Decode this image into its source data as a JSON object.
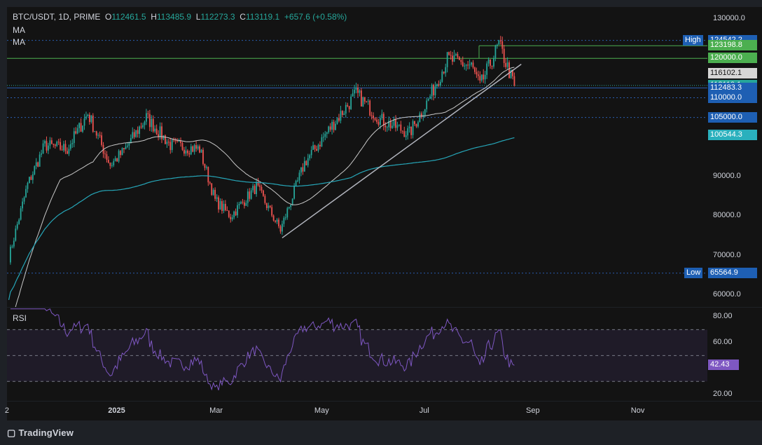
{
  "header": {
    "symbol": "BTC/USDT, 1D, PRIME",
    "o_label": "O",
    "o_value": "112461.5",
    "h_label": "H",
    "h_value": "113485.9",
    "l_label": "L",
    "l_value": "112273.3",
    "c_label": "C",
    "c_value": "113119.1",
    "change": "+657.6 (+0.58%)",
    "ma1": "MA",
    "ma2": "MA"
  },
  "rsi_label": "RSI",
  "brand": "TradingView",
  "colors": {
    "up": "#26a69a",
    "down": "#ef5350",
    "ma_fast": "#c8c8c8",
    "ma_slow": "#26a6b8",
    "rsi": "#7e57c2",
    "trendline": "#b2b5be"
  },
  "price_ticks": [
    "130000.0",
    "90000.0",
    "80000.0",
    "70000.0",
    "60000.0"
  ],
  "rsi_ticks": [
    "80.00",
    "60.00",
    "20.00"
  ],
  "time_ticks": [
    {
      "label": "2",
      "bold": false
    },
    {
      "label": "2025",
      "bold": true
    },
    {
      "label": "Mar",
      "bold": false
    },
    {
      "label": "May",
      "bold": false
    },
    {
      "label": "Jul",
      "bold": false
    },
    {
      "label": "Sep",
      "bold": false
    },
    {
      "label": "Nov",
      "bold": false
    }
  ],
  "price_tags": [
    {
      "label": "High",
      "value": "124542.2",
      "bg": "#1e5fb3"
    },
    {
      "label": "",
      "value": "123198.8",
      "bg": "#4caf50"
    },
    {
      "label": "",
      "value": "120000.0",
      "bg": "#4caf50"
    },
    {
      "label": "",
      "value": "116102.1",
      "bg": "#d6d6d6"
    },
    {
      "label": "",
      "value": "113119.1",
      "bg": "#26a69a"
    },
    {
      "label": "",
      "value": "112483.3",
      "bg": "#1e5fb3"
    },
    {
      "label": "",
      "value": "110000.0",
      "bg": "#1e5fb3"
    },
    {
      "label": "",
      "value": "105000.0",
      "bg": "#1e5fb3"
    },
    {
      "label": "",
      "value": "100544.3",
      "bg": "#2ab0bd"
    },
    {
      "label": "Low",
      "value": "65564.9",
      "bg": "#1e5fb3"
    }
  ],
  "rsi_value_tag": "42.43",
  "chart_data": {
    "type": "candlestick",
    "title": "BTC/USDT, 1D, PRIME",
    "y_range": [
      57000,
      133000
    ],
    "rsi_range": [
      15,
      87
    ],
    "rsi_levels": [
      70,
      50,
      30
    ],
    "horizontal_levels": [
      124542.2,
      123198.8,
      120000.0,
      112483.3,
      110000.0,
      105000.0,
      65564.9
    ],
    "close_series": [
      {
        "date": "2024-11-01",
        "close": 69500
      },
      {
        "date": "2024-11-12",
        "close": 88000
      },
      {
        "date": "2024-11-22",
        "close": 98000
      },
      {
        "date": "2024-12-05",
        "close": 97000
      },
      {
        "date": "2024-12-17",
        "close": 106000
      },
      {
        "date": "2024-12-30",
        "close": 93000
      },
      {
        "date": "2025-01-07",
        "close": 96500
      },
      {
        "date": "2025-01-20",
        "close": 105000
      },
      {
        "date": "2025-02-03",
        "close": 98000
      },
      {
        "date": "2025-02-20",
        "close": 97000
      },
      {
        "date": "2025-03-01",
        "close": 84000
      },
      {
        "date": "2025-03-10",
        "close": 80000
      },
      {
        "date": "2025-03-25",
        "close": 87500
      },
      {
        "date": "2025-04-08",
        "close": 76500
      },
      {
        "date": "2025-04-22",
        "close": 93500
      },
      {
        "date": "2025-05-08",
        "close": 103000
      },
      {
        "date": "2025-05-22",
        "close": 111000
      },
      {
        "date": "2025-06-05",
        "close": 104500
      },
      {
        "date": "2025-06-22",
        "close": 101000
      },
      {
        "date": "2025-07-03",
        "close": 109500
      },
      {
        "date": "2025-07-14",
        "close": 119800
      },
      {
        "date": "2025-07-28",
        "close": 118000
      },
      {
        "date": "2025-08-02",
        "close": 113000
      },
      {
        "date": "2025-08-13",
        "close": 123500
      },
      {
        "date": "2025-08-22",
        "close": 113119.1
      }
    ],
    "ma_fast_last": 116102.1,
    "ma_slow_last": 100544.3,
    "rsi_last": 42.43,
    "x_ticks": [
      "2",
      "2025",
      "Mar",
      "May",
      "Jul",
      "Sep",
      "Nov"
    ],
    "grid": false,
    "legend": "top-left"
  }
}
